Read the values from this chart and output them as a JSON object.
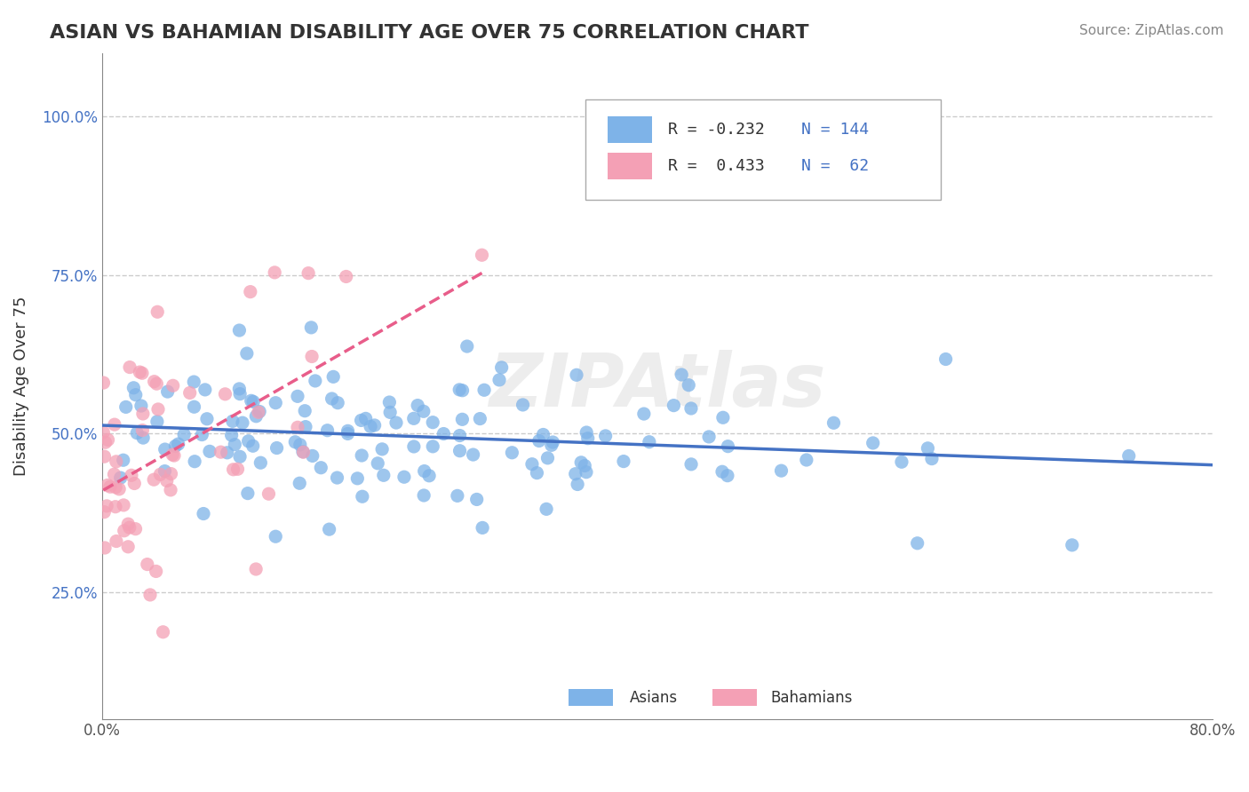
{
  "title": "ASIAN VS BAHAMIAN DISABILITY AGE OVER 75 CORRELATION CHART",
  "source_text": "Source: ZipAtlas.com",
  "xlabel": "",
  "ylabel": "Disability Age Over 75",
  "xlim": [
    0.0,
    0.8
  ],
  "ylim": [
    0.05,
    1.1
  ],
  "xticks": [
    0.0,
    0.1,
    0.2,
    0.3,
    0.4,
    0.5,
    0.6,
    0.7,
    0.8
  ],
  "xticklabels": [
    "0.0%",
    "",
    "",
    "",
    "",
    "",
    "",
    "",
    "80.0%"
  ],
  "yticks": [
    0.25,
    0.5,
    0.75,
    1.0
  ],
  "yticklabels": [
    "25.0%",
    "50.0%",
    "75.0%",
    "100.0%"
  ],
  "asian_color": "#7EB3E8",
  "bahamian_color": "#F4A0B5",
  "asian_line_color": "#4472C4",
  "bahamian_line_color": "#E85D8A",
  "grid_color": "#CCCCCC",
  "background_color": "#FFFFFF",
  "watermark_text": "ZIPAtlas",
  "watermark_color": "#DDDDDD",
  "legend_R_asian": "-0.232",
  "legend_N_asian": "144",
  "legend_R_bahamian": "0.433",
  "legend_N_bahamian": "62",
  "legend_label_asian": "Asians",
  "legend_label_bahamian": "Bahamians",
  "asian_R": -0.232,
  "bahamian_R": 0.433,
  "asian_seed": 42,
  "bahamian_seed": 7,
  "asian_N": 144,
  "bahamian_N": 62
}
